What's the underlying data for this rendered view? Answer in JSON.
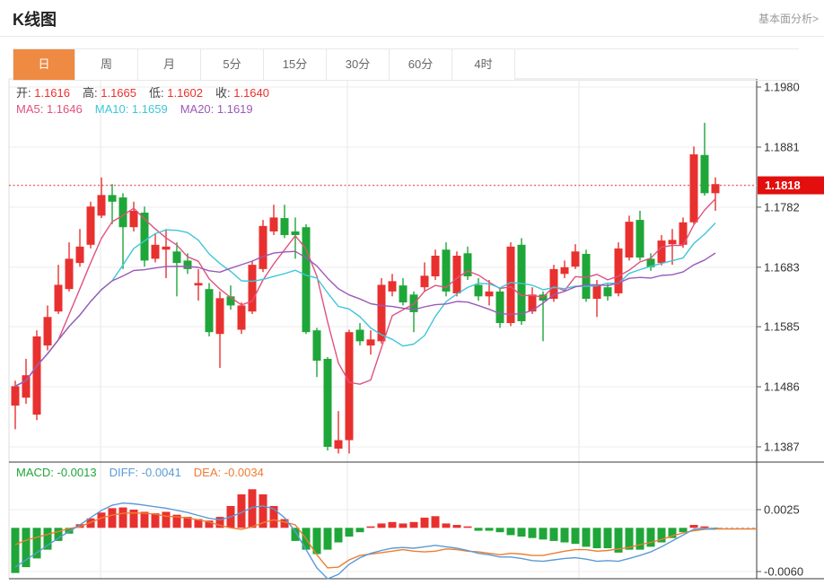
{
  "header": {
    "title": "K线图",
    "link_label": "基本面分析>"
  },
  "tabs": {
    "active": "日",
    "active_bg": "#ef8a43",
    "items": [
      "日",
      "周",
      "月",
      "5分",
      "15分",
      "30分",
      "60分",
      "4时"
    ]
  },
  "ohlc_legend": {
    "value_color": "#e8312f",
    "items": [
      {
        "label": "开:",
        "value": "1.1616"
      },
      {
        "label": "高:",
        "value": "1.1665"
      },
      {
        "label": "低:",
        "value": "1.1602"
      },
      {
        "label": "收:",
        "value": "1.1640"
      }
    ]
  },
  "ma_legend": {
    "items": [
      {
        "label": "MA5:",
        "value": "1.1646",
        "color": "#e0527e"
      },
      {
        "label": "MA10:",
        "value": "1.1659",
        "color": "#3ec6d8"
      },
      {
        "label": "MA20:",
        "value": "1.1619",
        "color": "#9c59b8"
      }
    ]
  },
  "macd_legend": {
    "items": [
      {
        "label": "MACD:",
        "value": "-0.0013",
        "color": "#1fa639"
      },
      {
        "label": "DIFF:",
        "value": "-0.0041",
        "color": "#5b9bd5"
      },
      {
        "label": "DEA:",
        "value": "-0.0034",
        "color": "#ed7d31"
      }
    ]
  },
  "price_axis": {
    "tick_labels": [
      "1.1980",
      "1.1881",
      "1.1782",
      "1.1683",
      "1.1585",
      "1.1486",
      "1.1387"
    ]
  },
  "macd_axis": {
    "tick_labels": [
      "0.0025",
      "-0.0060"
    ]
  },
  "last_price": {
    "label": "1.1818",
    "value": 1.1818,
    "badge_color": "#e30e0e",
    "line_color": "#e8635a"
  },
  "chart_data": [
    {
      "type": "candlestick",
      "title": "K线图 (日)",
      "up_color": "#e8312f",
      "down_color": "#1fa639",
      "ylim": [
        1.1362,
        1.1993
      ],
      "y_ticks": [
        1.198,
        1.1881,
        1.1782,
        1.1683,
        1.1585,
        1.1486,
        1.1387
      ],
      "last_price": 1.1818,
      "ma_series": [
        {
          "name": "MA5",
          "period": 5,
          "color": "#e0527e"
        },
        {
          "name": "MA10",
          "period": 10,
          "color": "#3ec6d8"
        },
        {
          "name": "MA20",
          "period": 20,
          "color": "#9c59b8"
        }
      ],
      "candles_format": [
        "open",
        "high",
        "low",
        "close"
      ],
      "candles": [
        [
          1.1455,
          1.1496,
          1.1416,
          1.1487
        ],
        [
          1.1468,
          1.1532,
          1.1458,
          1.1505
        ],
        [
          1.144,
          1.1579,
          1.1431,
          1.1569
        ],
        [
          1.1554,
          1.162,
          1.1546,
          1.1601
        ],
        [
          1.161,
          1.1687,
          1.1606,
          1.1654
        ],
        [
          1.1647,
          1.1724,
          1.1643,
          1.1697
        ],
        [
          1.169,
          1.1746,
          1.1684,
          1.1717
        ],
        [
          1.172,
          1.1791,
          1.1714,
          1.1783
        ],
        [
          1.1768,
          1.1831,
          1.1764,
          1.1802
        ],
        [
          1.1802,
          1.182,
          1.1754,
          1.1791
        ],
        [
          1.1798,
          1.1805,
          1.168,
          1.1749
        ],
        [
          1.1749,
          1.1791,
          1.1742,
          1.1776
        ],
        [
          1.1773,
          1.1783,
          1.1684,
          1.1694
        ],
        [
          1.1697,
          1.1739,
          1.1691,
          1.172
        ],
        [
          1.1712,
          1.1746,
          1.1665,
          1.1717
        ],
        [
          1.1709,
          1.1724,
          1.1635,
          1.169
        ],
        [
          1.1694,
          1.1706,
          1.1672,
          1.168
        ],
        [
          1.1653,
          1.168,
          1.1628,
          1.1657
        ],
        [
          1.1647,
          1.1657,
          1.1569,
          1.1576
        ],
        [
          1.1573,
          1.1643,
          1.1517,
          1.1632
        ],
        [
          1.1635,
          1.1653,
          1.1613,
          1.162
        ],
        [
          1.158,
          1.1625,
          1.1573,
          1.162
        ],
        [
          1.161,
          1.1694,
          1.1606,
          1.1687
        ],
        [
          1.168,
          1.1761,
          1.1675,
          1.1751
        ],
        [
          1.1742,
          1.1786,
          1.1736,
          1.1765
        ],
        [
          1.1764,
          1.1786,
          1.1731,
          1.1736
        ],
        [
          1.1742,
          1.1765,
          1.1697,
          1.1736
        ],
        [
          1.1749,
          1.1754,
          1.1573,
          1.1576
        ],
        [
          1.1579,
          1.1583,
          1.1502,
          1.1529
        ],
        [
          1.1532,
          1.1535,
          1.1381,
          1.1387
        ],
        [
          1.1384,
          1.1446,
          1.1376,
          1.1398
        ],
        [
          1.1398,
          1.158,
          1.1376,
          1.1576
        ],
        [
          1.158,
          1.1591,
          1.1554,
          1.1561
        ],
        [
          1.1554,
          1.1579,
          1.1539,
          1.1564
        ],
        [
          1.1561,
          1.1665,
          1.1557,
          1.1654
        ],
        [
          1.1643,
          1.1672,
          1.1635,
          1.166
        ],
        [
          1.1653,
          1.1665,
          1.162,
          1.1625
        ],
        [
          1.1638,
          1.1643,
          1.1576,
          1.1609
        ],
        [
          1.165,
          1.1691,
          1.1643,
          1.1669
        ],
        [
          1.1668,
          1.1712,
          1.1662,
          1.1702
        ],
        [
          1.1712,
          1.1724,
          1.1635,
          1.1643
        ],
        [
          1.164,
          1.1709,
          1.1635,
          1.1702
        ],
        [
          1.1706,
          1.1717,
          1.1662,
          1.1668
        ],
        [
          1.1654,
          1.1665,
          1.1628,
          1.1635
        ],
        [
          1.1635,
          1.1662,
          1.162,
          1.1643
        ],
        [
          1.1643,
          1.1648,
          1.1583,
          1.1591
        ],
        [
          1.1591,
          1.1724,
          1.1586,
          1.1717
        ],
        [
          1.172,
          1.1731,
          1.1588,
          1.1594
        ],
        [
          1.161,
          1.165,
          1.1606,
          1.1638
        ],
        [
          1.1638,
          1.1643,
          1.1561,
          1.1628
        ],
        [
          1.1631,
          1.1687,
          1.1626,
          1.168
        ],
        [
          1.1672,
          1.1694,
          1.1665,
          1.1683
        ],
        [
          1.1684,
          1.1721,
          1.168,
          1.1709
        ],
        [
          1.1705,
          1.1712,
          1.1626,
          1.1631
        ],
        [
          1.1631,
          1.1662,
          1.1601,
          1.1653
        ],
        [
          1.165,
          1.1657,
          1.1628,
          1.1635
        ],
        [
          1.164,
          1.1724,
          1.1635,
          1.1714
        ],
        [
          1.1699,
          1.1768,
          1.1694,
          1.1758
        ],
        [
          1.1761,
          1.1776,
          1.1694,
          1.1699
        ],
        [
          1.1697,
          1.1706,
          1.1677,
          1.1683
        ],
        [
          1.169,
          1.1736,
          1.1686,
          1.1727
        ],
        [
          1.1721,
          1.1746,
          1.1687,
          1.1728
        ],
        [
          1.172,
          1.1765,
          1.1715,
          1.1757
        ],
        [
          1.1757,
          1.1882,
          1.1754,
          1.1869
        ],
        [
          1.1868,
          1.1921,
          1.1801,
          1.1805
        ],
        [
          1.1805,
          1.1831,
          1.1776,
          1.182
        ]
      ]
    },
    {
      "type": "bar",
      "title": "MACD(12,26,9)",
      "y_ticks": [
        0.0025,
        -0.006
      ],
      "positive_color": "#e8312f",
      "negative_color": "#1fa639",
      "diff_color": "#5b9bd5",
      "dea_color": "#ed7d31",
      "dea_rule": "dea = diff - histogram/2",
      "histogram": [
        -0.0062,
        -0.0054,
        -0.0042,
        -0.003,
        -0.0018,
        -0.0008,
        0.0005,
        0.0013,
        0.0021,
        0.0027,
        0.0028,
        0.0025,
        0.0022,
        0.002,
        0.0022,
        0.0018,
        0.0015,
        0.0012,
        0.001,
        0.0015,
        0.003,
        0.0046,
        0.0053,
        0.0046,
        0.003,
        0.0012,
        -0.0018,
        -0.003,
        -0.0036,
        -0.003,
        -0.002,
        -0.0012,
        -0.0006,
        0.0002,
        0.0006,
        0.0008,
        0.0006,
        0.0008,
        0.0014,
        0.0016,
        0.0006,
        0.0004,
        0.0002,
        -0.0004,
        -0.0004,
        -0.0006,
        -0.001,
        -0.0012,
        -0.0014,
        -0.0016,
        -0.0018,
        -0.002,
        -0.0022,
        -0.0026,
        -0.0028,
        -0.0028,
        -0.0034,
        -0.003,
        -0.003,
        -0.0026,
        -0.002,
        -0.0014,
        -0.0006,
        0.0004,
        0.0002,
        -0.0001
      ],
      "diff": [
        -0.0054,
        -0.0044,
        -0.0034,
        -0.0024,
        -0.0014,
        -0.0005,
        0.0004,
        0.0014,
        0.0024,
        0.0031,
        0.0034,
        0.0033,
        0.0031,
        0.0029,
        0.0027,
        0.0024,
        0.0021,
        0.0017,
        0.0013,
        0.0011,
        0.0015,
        0.0021,
        0.0028,
        0.003,
        0.0026,
        0.0014,
        -0.0005,
        -0.003,
        -0.0055,
        -0.007,
        -0.0064,
        -0.005,
        -0.0041,
        -0.0035,
        -0.0031,
        -0.0028,
        -0.0027,
        -0.0028,
        -0.0026,
        -0.0024,
        -0.0026,
        -0.0028,
        -0.0031,
        -0.0035,
        -0.0037,
        -0.004,
        -0.004,
        -0.0042,
        -0.0045,
        -0.0046,
        -0.0044,
        -0.0042,
        -0.0041,
        -0.0043,
        -0.0046,
        -0.0045,
        -0.0046,
        -0.0042,
        -0.0038,
        -0.0033,
        -0.0026,
        -0.0018,
        -0.001,
        -0.0002,
        -0.0001,
        -0.0002
      ]
    }
  ]
}
